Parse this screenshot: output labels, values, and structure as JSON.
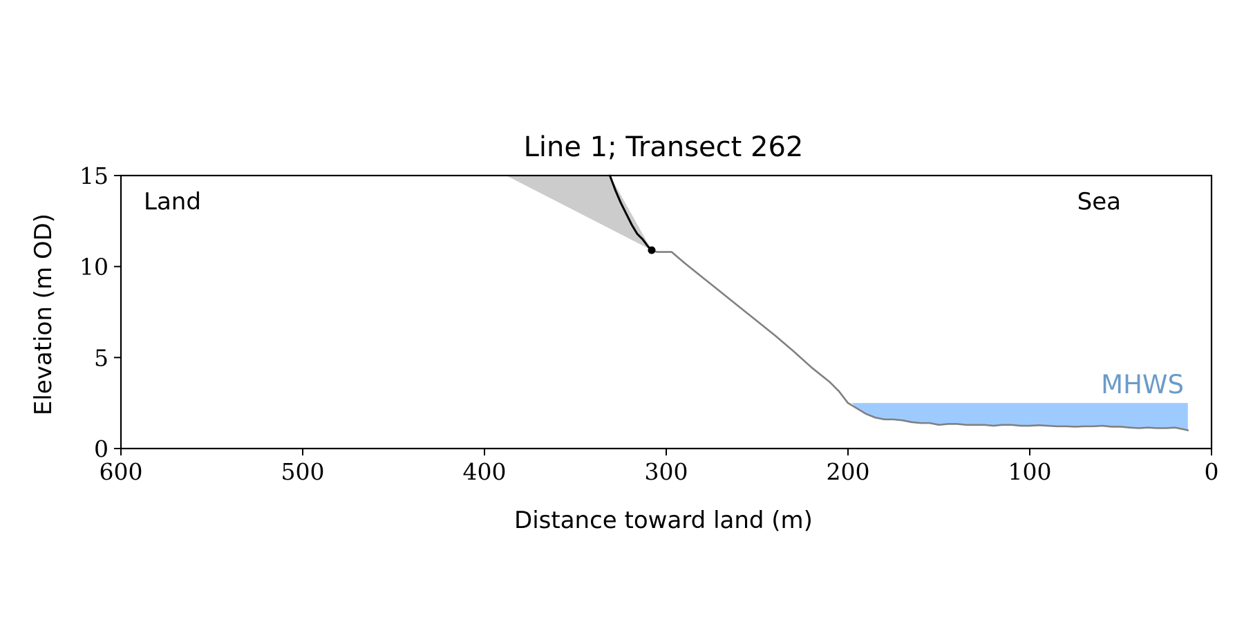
{
  "chart_data": {
    "type": "line",
    "title": "Line 1; Transect 262",
    "xlabel": "Distance toward land (m)",
    "ylabel": "Elevation (m OD)",
    "xlim": [
      600,
      0
    ],
    "ylim": [
      0,
      15
    ],
    "x_ticks": [
      600,
      500,
      400,
      300,
      200,
      100,
      0
    ],
    "y_ticks": [
      0,
      5,
      10,
      15
    ],
    "grid": false,
    "annotations": {
      "land_label": "Land",
      "sea_label": "Sea",
      "mhws_label": "MHWS"
    },
    "mhws": {
      "elevation": 2.5,
      "x_start": 198,
      "x_end": 13,
      "color": "#9ecbff",
      "label_color": "#6b9bc8"
    },
    "colors": {
      "profile": "#808080",
      "cliff": "#000000",
      "projection_fill": "#cccccc"
    },
    "series": [
      {
        "role": "profile",
        "points": [
          [
            308,
            10.9
          ],
          [
            305,
            10.8
          ],
          [
            300,
            10.8
          ],
          [
            297,
            10.8
          ],
          [
            290,
            10.2
          ],
          [
            280,
            9.4
          ],
          [
            270,
            8.6
          ],
          [
            260,
            7.8
          ],
          [
            250,
            7.0
          ],
          [
            240,
            6.2
          ],
          [
            230,
            5.35
          ],
          [
            220,
            4.45
          ],
          [
            210,
            3.65
          ],
          [
            205,
            3.15
          ],
          [
            200,
            2.5
          ],
          [
            195,
            2.2
          ],
          [
            190,
            1.9
          ],
          [
            185,
            1.7
          ],
          [
            180,
            1.6
          ],
          [
            175,
            1.6
          ],
          [
            170,
            1.55
          ],
          [
            165,
            1.45
          ],
          [
            160,
            1.4
          ],
          [
            155,
            1.4
          ],
          [
            150,
            1.3
          ],
          [
            145,
            1.35
          ],
          [
            140,
            1.35
          ],
          [
            135,
            1.3
          ],
          [
            130,
            1.3
          ],
          [
            125,
            1.3
          ],
          [
            120,
            1.25
          ],
          [
            115,
            1.3
          ],
          [
            110,
            1.3
          ],
          [
            105,
            1.25
          ],
          [
            100,
            1.25
          ],
          [
            95,
            1.28
          ],
          [
            90,
            1.25
          ],
          [
            85,
            1.22
          ],
          [
            80,
            1.22
          ],
          [
            75,
            1.2
          ],
          [
            70,
            1.22
          ],
          [
            65,
            1.22
          ],
          [
            60,
            1.25
          ],
          [
            55,
            1.2
          ],
          [
            50,
            1.2
          ],
          [
            45,
            1.15
          ],
          [
            40,
            1.12
          ],
          [
            35,
            1.15
          ],
          [
            30,
            1.12
          ],
          [
            25,
            1.12
          ],
          [
            20,
            1.15
          ],
          [
            15,
            1.05
          ],
          [
            13,
            1.0
          ]
        ]
      },
      {
        "role": "cliff",
        "points": [
          [
            331,
            15
          ],
          [
            328,
            14.2
          ],
          [
            325,
            13.5
          ],
          [
            322,
            12.9
          ],
          [
            319,
            12.3
          ],
          [
            316,
            11.8
          ],
          [
            313,
            11.5
          ],
          [
            310,
            11.1
          ],
          [
            308,
            10.9
          ]
        ]
      }
    ],
    "cliff_toe": [
      308,
      10.9
    ],
    "projection_polygon": [
      [
        388,
        15
      ],
      [
        331,
        15
      ],
      [
        308,
        10.9
      ]
    ]
  }
}
